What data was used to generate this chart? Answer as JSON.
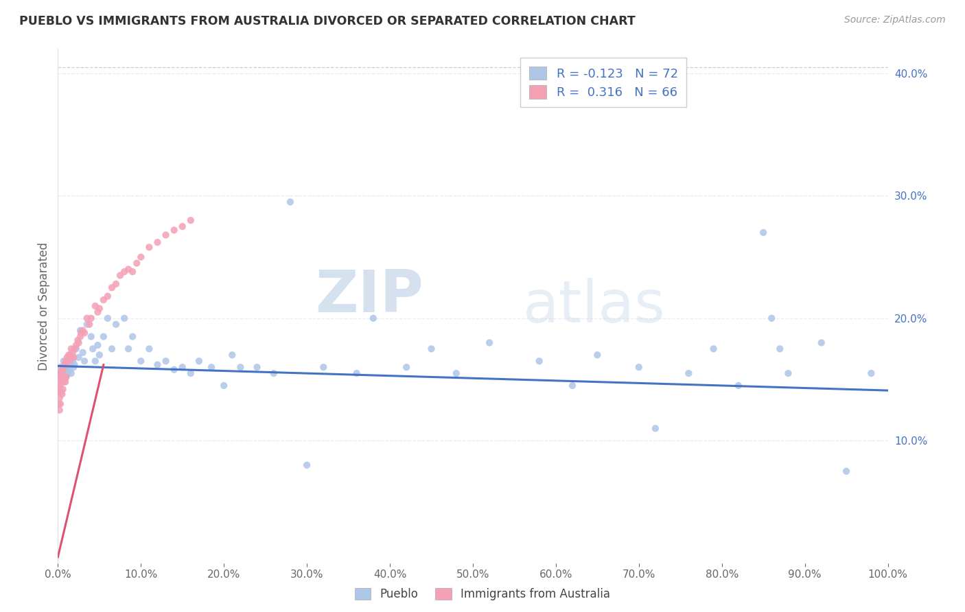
{
  "title": "PUEBLO VS IMMIGRANTS FROM AUSTRALIA DIVORCED OR SEPARATED CORRELATION CHART",
  "source_text": "Source: ZipAtlas.com",
  "ylabel": "Divorced or Separated",
  "R1": -0.123,
  "N1": 72,
  "R2": 0.316,
  "N2": 66,
  "legend_label_1": "Pueblo",
  "legend_label_2": "Immigrants from Australia",
  "watermark_zip": "ZIP",
  "watermark_atlas": "atlas",
  "color_blue": "#AEC6E8",
  "color_pink": "#F4A0B5",
  "line_color_blue": "#4472C4",
  "line_color_pink": "#E05070",
  "blue_line_x0": 0.0,
  "blue_line_y0": 0.161,
  "blue_line_x1": 1.0,
  "blue_line_y1": 0.141,
  "pink_line_x0": 0.0,
  "pink_line_y0": 0.005,
  "pink_line_x1": 0.055,
  "pink_line_y1": 0.162,
  "xlim_min": 0.0,
  "xlim_max": 1.0,
  "ylim_min": 0.0,
  "ylim_max": 0.42,
  "xticks": [
    0.0,
    0.1,
    0.2,
    0.3,
    0.4,
    0.5,
    0.6,
    0.7,
    0.8,
    0.9,
    1.0
  ],
  "yticks_right": [
    0.1,
    0.2,
    0.3,
    0.4
  ],
  "grid_color": "#E8ECF0",
  "dashed_top_color": "#C8D0D8",
  "pueblo_x": [
    0.003,
    0.005,
    0.007,
    0.008,
    0.009,
    0.01,
    0.01,
    0.011,
    0.012,
    0.013,
    0.014,
    0.015,
    0.016,
    0.018,
    0.019,
    0.02,
    0.022,
    0.025,
    0.027,
    0.03,
    0.032,
    0.035,
    0.04,
    0.042,
    0.045,
    0.048,
    0.05,
    0.055,
    0.06,
    0.065,
    0.07,
    0.08,
    0.085,
    0.09,
    0.1,
    0.11,
    0.12,
    0.13,
    0.14,
    0.15,
    0.16,
    0.17,
    0.185,
    0.2,
    0.21,
    0.22,
    0.24,
    0.26,
    0.28,
    0.3,
    0.32,
    0.36,
    0.38,
    0.42,
    0.45,
    0.48,
    0.52,
    0.58,
    0.62,
    0.65,
    0.7,
    0.72,
    0.76,
    0.79,
    0.82,
    0.85,
    0.86,
    0.87,
    0.88,
    0.92,
    0.95,
    0.98
  ],
  "pueblo_y": [
    0.16,
    0.155,
    0.165,
    0.15,
    0.158,
    0.163,
    0.152,
    0.16,
    0.155,
    0.162,
    0.158,
    0.17,
    0.155,
    0.165,
    0.16,
    0.162,
    0.175,
    0.168,
    0.19,
    0.172,
    0.165,
    0.195,
    0.185,
    0.175,
    0.165,
    0.178,
    0.17,
    0.185,
    0.2,
    0.175,
    0.195,
    0.2,
    0.175,
    0.185,
    0.165,
    0.175,
    0.162,
    0.165,
    0.158,
    0.16,
    0.155,
    0.165,
    0.16,
    0.145,
    0.17,
    0.16,
    0.16,
    0.155,
    0.295,
    0.08,
    0.16,
    0.155,
    0.2,
    0.16,
    0.175,
    0.155,
    0.18,
    0.165,
    0.145,
    0.17,
    0.16,
    0.11,
    0.155,
    0.175,
    0.145,
    0.27,
    0.2,
    0.175,
    0.155,
    0.18,
    0.075,
    0.155
  ],
  "immig_x": [
    0.0,
    0.0,
    0.001,
    0.001,
    0.001,
    0.002,
    0.002,
    0.002,
    0.002,
    0.003,
    0.003,
    0.003,
    0.004,
    0.004,
    0.005,
    0.005,
    0.005,
    0.006,
    0.006,
    0.007,
    0.007,
    0.008,
    0.008,
    0.009,
    0.009,
    0.01,
    0.01,
    0.011,
    0.012,
    0.013,
    0.014,
    0.015,
    0.016,
    0.017,
    0.018,
    0.019,
    0.02,
    0.022,
    0.024,
    0.025,
    0.027,
    0.028,
    0.03,
    0.032,
    0.035,
    0.038,
    0.04,
    0.045,
    0.048,
    0.05,
    0.055,
    0.06,
    0.065,
    0.07,
    0.075,
    0.08,
    0.085,
    0.09,
    0.095,
    0.1,
    0.11,
    0.12,
    0.13,
    0.14,
    0.15,
    0.16
  ],
  "immig_y": [
    0.155,
    0.14,
    0.155,
    0.145,
    0.13,
    0.155,
    0.145,
    0.135,
    0.125,
    0.15,
    0.14,
    0.13,
    0.152,
    0.14,
    0.158,
    0.148,
    0.138,
    0.155,
    0.142,
    0.16,
    0.148,
    0.162,
    0.15,
    0.163,
    0.148,
    0.165,
    0.152,
    0.168,
    0.165,
    0.17,
    0.165,
    0.168,
    0.175,
    0.168,
    0.172,
    0.168,
    0.175,
    0.178,
    0.182,
    0.18,
    0.185,
    0.188,
    0.19,
    0.188,
    0.2,
    0.195,
    0.2,
    0.21,
    0.205,
    0.208,
    0.215,
    0.218,
    0.225,
    0.228,
    0.235,
    0.238,
    0.24,
    0.238,
    0.245,
    0.25,
    0.258,
    0.262,
    0.268,
    0.272,
    0.275,
    0.28
  ]
}
